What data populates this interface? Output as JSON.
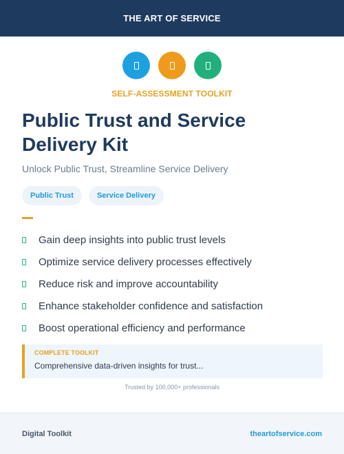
{
  "header": {
    "title": "THE ART OF SERVICE"
  },
  "icons": [
    {
      "name": "doc-icon",
      "color": "#1ea0e0"
    },
    {
      "name": "doc-icon",
      "color": "#ef9a1a"
    },
    {
      "name": "doc-icon",
      "color": "#21b07c"
    }
  ],
  "eyebrow": "SELF-ASSESSMENT TOOLKIT",
  "title": "Public Trust and Service Delivery Kit",
  "subtitle": "Unlock Public Trust, Streamline Service Delivery",
  "tags": [
    "Public Trust",
    "Service Delivery"
  ],
  "benefits": [
    "Gain deep insights into public trust levels",
    "Optimize service delivery processes effectively",
    "Reduce risk and improve accountability",
    "Enhance stakeholder confidence and satisfaction",
    "Boost operational efficiency and performance"
  ],
  "callout": {
    "label": "COMPLETE TOOLKIT",
    "text": "Comprehensive data-driven insights for trust..."
  },
  "trusted": "Trusted by 100,000+ professionals",
  "footer": {
    "left": "Digital Toolkit",
    "right": "theartofservice.com"
  }
}
